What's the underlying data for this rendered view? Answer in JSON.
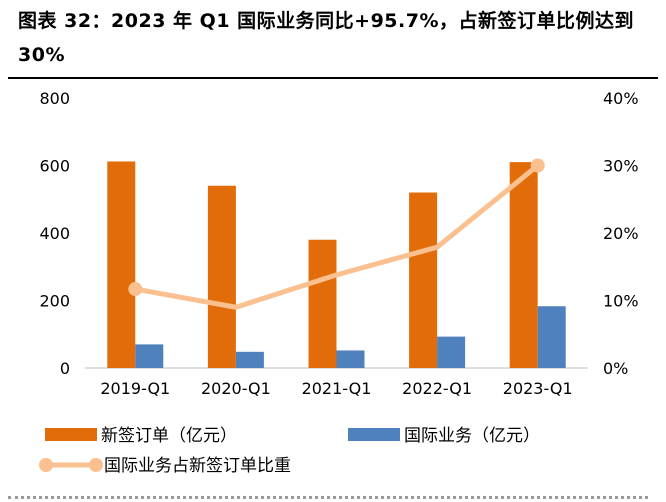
{
  "title": "图表 32：2023 年 Q1 国际业务同比+95.7%，占新签订单比例达到 30%",
  "chart_data": {
    "type": "bar",
    "categories": [
      "2019-Q1",
      "2020-Q1",
      "2021-Q1",
      "2022-Q1",
      "2023-Q1"
    ],
    "series": [
      {
        "name": "新签订单（亿元）",
        "type": "bar",
        "axis": "left",
        "color": "#e36c0a",
        "values": [
          612,
          540,
          380,
          520,
          610
        ]
      },
      {
        "name": "国际业务（亿元）",
        "type": "bar",
        "axis": "left",
        "color": "#4f81bd",
        "values": [
          70,
          48,
          52,
          93,
          183
        ]
      },
      {
        "name": "国际业务占新签订单比重",
        "type": "line",
        "axis": "right",
        "color": "#fac090",
        "values": [
          11.7,
          9.0,
          13.8,
          17.9,
          30.0
        ]
      }
    ],
    "y_left": {
      "min": 0,
      "max": 800,
      "ticks": [
        0,
        200,
        400,
        600,
        800
      ]
    },
    "y_right": {
      "min": 0,
      "max": 40,
      "ticks": [
        "0%",
        "10%",
        "20%",
        "30%",
        "40%"
      ]
    },
    "legend_position": "bottom",
    "grid": false
  }
}
